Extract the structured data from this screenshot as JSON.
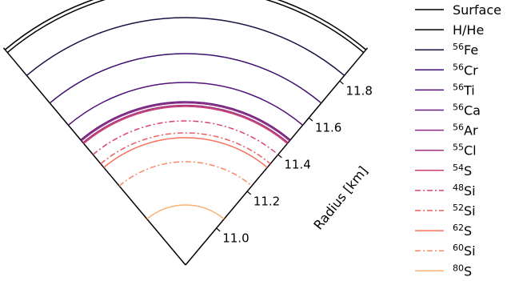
{
  "chart_data": {
    "type": "line",
    "chart_style": "radial layer wedge",
    "axis": {
      "label": "Radius [km]",
      "ticks": [
        11.0,
        11.2,
        11.4,
        11.6,
        11.8
      ],
      "range": [
        10.6,
        11.98
      ]
    },
    "grid": false,
    "legend_position": "right",
    "series": [
      {
        "name": "Surface",
        "name_pre": "",
        "name_sup": "",
        "name_main": "Surface",
        "radius": 11.97,
        "color": "#000000",
        "dash": "solid"
      },
      {
        "name": "H/He",
        "name_pre": "",
        "name_sup": "",
        "name_main": "H/He",
        "radius": 11.955,
        "color": "#000004",
        "dash": "solid"
      },
      {
        "name": "56Fe",
        "name_pre": "",
        "name_sup": "56",
        "name_main": "Fe",
        "radius": 11.83,
        "color": "#1b1044",
        "dash": "solid"
      },
      {
        "name": "56Cr",
        "name_pre": "",
        "name_sup": "56",
        "name_main": "Cr",
        "radius": 11.68,
        "color": "#3b0f70",
        "dash": "solid"
      },
      {
        "name": "56Ti",
        "name_pre": "",
        "name_sup": "56",
        "name_main": "Ti",
        "radius": 11.56,
        "color": "#51127c",
        "dash": "solid"
      },
      {
        "name": "56Ca",
        "name_pre": "",
        "name_sup": "56",
        "name_main": "Ca",
        "radius": 11.48,
        "color": "#6a1c81",
        "dash": "solid"
      },
      {
        "name": "56Ar",
        "name_pre": "",
        "name_sup": "56",
        "name_main": "Ar",
        "radius": 11.475,
        "color": "#8c2981",
        "dash": "solid"
      },
      {
        "name": "55Cl",
        "name_pre": "",
        "name_sup": "55",
        "name_main": "Cl",
        "radius": 11.465,
        "color": "#a3307e",
        "dash": "solid"
      },
      {
        "name": "54S",
        "name_pre": "",
        "name_sup": "54",
        "name_main": "S",
        "radius": 11.46,
        "color": "#c83e73",
        "dash": "solid"
      },
      {
        "name": "48Si",
        "name_pre": "",
        "name_sup": "48",
        "name_main": "Si",
        "radius": 11.4,
        "color": "#d8456c",
        "dash": "dashdot"
      },
      {
        "name": "52Si",
        "name_pre": "",
        "name_sup": "52",
        "name_main": "Si",
        "radius": 11.35,
        "color": "#e85d5d",
        "dash": "dashdot"
      },
      {
        "name": "62S",
        "name_pre": "",
        "name_sup": "62",
        "name_main": "S",
        "radius": 11.33,
        "color": "#f7705c",
        "dash": "solid"
      },
      {
        "name": "60Si",
        "name_pre": "",
        "name_sup": "60",
        "name_main": "Si",
        "radius": 11.23,
        "color": "#fb8861",
        "dash": "dashdot"
      },
      {
        "name": "80S",
        "name_pre": "",
        "name_sup": "80",
        "name_main": "S",
        "radius": 11.05,
        "color": "#fcb071",
        "dash": "solid"
      }
    ]
  }
}
